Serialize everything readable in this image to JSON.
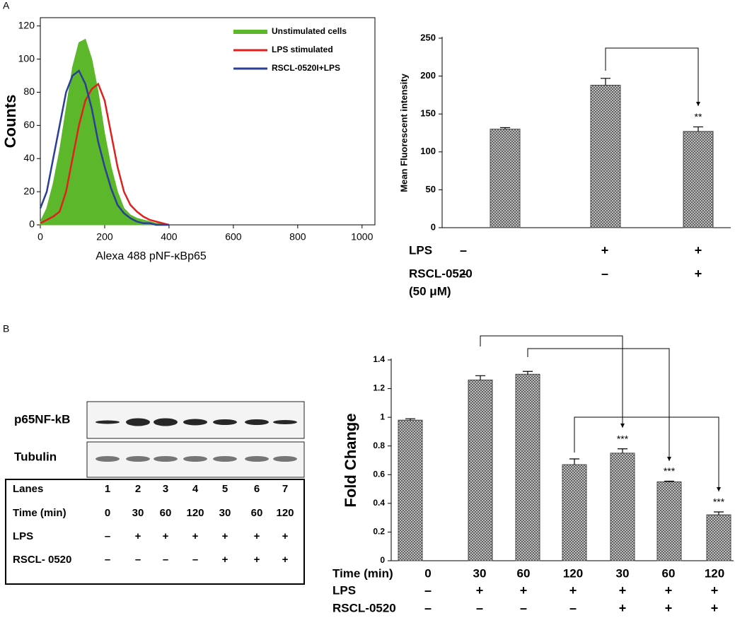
{
  "panel_labels": {
    "a": "A",
    "b": "B"
  },
  "chart_data": [
    {
      "type": "line",
      "x_label": "Alexa 488 pNF-κBp65",
      "y_label": "Counts",
      "x": [
        0,
        20,
        40,
        60,
        80,
        100,
        120,
        140,
        160,
        180,
        200,
        220,
        240,
        260,
        280,
        300,
        320,
        340,
        360,
        380,
        400
      ],
      "series": [
        {
          "name": "Unstimulated cells",
          "color": "#5cb82a",
          "fill": true,
          "values": [
            2,
            10,
            25,
            45,
            70,
            95,
            110,
            112,
            100,
            80,
            55,
            35,
            20,
            10,
            6,
            4,
            3,
            2,
            1,
            1,
            0
          ]
        },
        {
          "name": "LPS stimulated",
          "color": "#e0201e",
          "fill": false,
          "values": [
            1,
            3,
            5,
            8,
            20,
            40,
            60,
            75,
            82,
            85,
            75,
            55,
            35,
            20,
            12,
            8,
            5,
            3,
            2,
            1,
            0
          ]
        },
        {
          "name": "RSCL-0520I+LPS",
          "color": "#2a3e9a",
          "fill": false,
          "values": [
            10,
            20,
            40,
            60,
            80,
            90,
            93,
            85,
            70,
            50,
            35,
            22,
            12,
            7,
            4,
            2,
            1,
            1,
            0,
            0,
            0
          ]
        }
      ],
      "xlim": [
        0,
        1040
      ],
      "ylim": [
        0,
        125
      ],
      "xticks": [
        0,
        200,
        400,
        600,
        800,
        1000
      ],
      "yticks": [
        0,
        20,
        40,
        60,
        80,
        100,
        120
      ],
      "legend": "upper-right"
    },
    {
      "type": "bar",
      "y_label": "Mean Fluorescent intensity",
      "categories": [
        null,
        null,
        null
      ],
      "values": [
        130,
        188,
        127
      ],
      "errors": [
        2,
        9,
        6
      ],
      "significance": [
        null,
        null,
        "**"
      ],
      "color": "#555555",
      "ylim": [
        0,
        250
      ],
      "yticks": [
        0,
        50,
        100,
        150,
        200,
        250
      ],
      "conditions": [
        {
          "label": [
            "LPS"
          ],
          "marks": [
            "–",
            "+",
            "+"
          ]
        },
        {
          "label": [
            "RSCL-0520",
            "(50 μM)"
          ],
          "marks": [
            "–",
            "–",
            "+"
          ]
        }
      ]
    },
    {
      "type": "bar",
      "y_label": "Fold Change",
      "category_label": "Time (min)",
      "categories": [
        "0",
        "30",
        "60",
        "120",
        "30",
        "60",
        "120"
      ],
      "values": [
        0.98,
        1.26,
        1.3,
        0.67,
        0.75,
        0.55,
        0.32
      ],
      "errors": [
        0.01,
        0.03,
        0.02,
        0.04,
        0.03,
        0.005,
        0.02
      ],
      "significance": [
        null,
        null,
        null,
        null,
        "***",
        "***",
        "***"
      ],
      "color": "#555555",
      "ylim": [
        0,
        1.4
      ],
      "yticks": [
        0,
        0.2,
        0.4,
        0.6,
        0.8,
        1,
        1.2,
        1.4
      ],
      "conditions": [
        {
          "label": [
            "LPS"
          ],
          "marks": [
            "–",
            "+",
            "+",
            "+",
            "+",
            "+",
            "+"
          ]
        },
        {
          "label": [
            "RSCL-0520"
          ],
          "marks": [
            "–",
            "–",
            "–",
            "–",
            "+",
            "+",
            "+"
          ]
        }
      ]
    }
  ],
  "blot": {
    "bands": [
      "p65NF-kB",
      "Tubulin"
    ],
    "table": {
      "rows": [
        [
          "Lanes",
          "1",
          "2",
          "3",
          "4",
          "5",
          "6",
          "7"
        ],
        [
          "Time (min)",
          "0",
          "30",
          "60",
          "120",
          "30",
          "60",
          "120"
        ],
        [
          "LPS",
          "–",
          "+",
          "+",
          "+",
          "+",
          "+",
          "+"
        ],
        [
          "RSCL- 0520",
          "–",
          "–",
          "–",
          "–",
          "+",
          "+",
          "+"
        ]
      ]
    }
  }
}
